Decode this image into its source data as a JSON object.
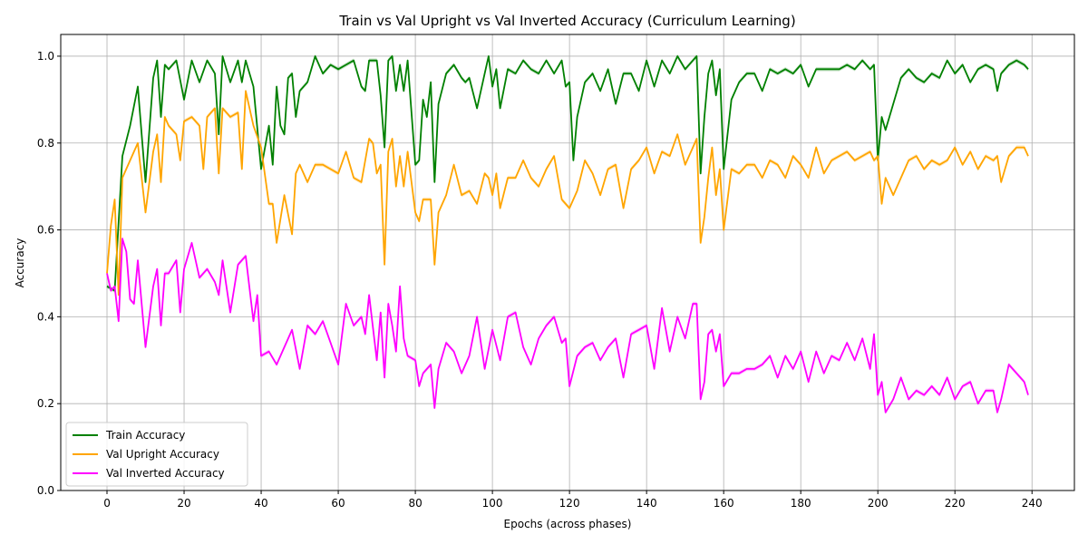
{
  "chart_data": {
    "type": "line",
    "title": "Train vs Val Upright vs Val Inverted Accuracy (Curriculum Learning)",
    "xlabel": "Epochs (across phases)",
    "ylabel": "Accuracy",
    "xlim": [
      -12,
      251
    ],
    "ylim": [
      0,
      1.05
    ],
    "xticks": [
      0,
      20,
      40,
      60,
      80,
      100,
      120,
      140,
      160,
      180,
      200,
      220,
      240
    ],
    "yticks": [
      0.0,
      0.2,
      0.4,
      0.6,
      0.8,
      1.0
    ],
    "ytick_labels": [
      "0.0",
      "0.2",
      "0.4",
      "0.6",
      "0.8",
      "1.0"
    ],
    "grid": true,
    "legend_position": "lower-left",
    "series": [
      {
        "name": "Train Accuracy",
        "color": "#008000",
        "x": [
          0,
          2,
          4,
          6,
          8,
          10,
          12,
          13,
          14,
          15,
          16,
          18,
          20,
          22,
          24,
          26,
          28,
          29,
          30,
          32,
          34,
          35,
          36,
          38,
          40,
          42,
          43,
          44,
          45,
          46,
          47,
          48,
          49,
          50,
          52,
          54,
          56,
          58,
          60,
          62,
          64,
          66,
          67,
          68,
          70,
          71,
          72,
          73,
          74,
          75,
          76,
          77,
          78,
          80,
          81,
          82,
          83,
          84,
          85,
          86,
          88,
          90,
          92,
          93,
          94,
          96,
          98,
          99,
          100,
          101,
          102,
          104,
          106,
          108,
          110,
          112,
          114,
          116,
          118,
          119,
          120,
          121,
          122,
          124,
          126,
          128,
          130,
          132,
          134,
          136,
          138,
          140,
          142,
          144,
          146,
          148,
          150,
          152,
          153,
          154,
          155,
          156,
          157,
          158,
          159,
          160,
          162,
          164,
          166,
          168,
          170,
          172,
          174,
          176,
          178,
          180,
          182,
          184,
          186,
          188,
          190,
          192,
          194,
          196,
          198,
          199,
          200,
          201,
          202,
          204,
          206,
          208,
          210,
          212,
          214,
          216,
          218,
          220,
          222,
          224,
          226,
          228,
          230,
          231,
          232,
          234,
          236,
          238,
          239
        ],
        "values": [
          0.47,
          0.46,
          0.77,
          0.84,
          0.93,
          0.71,
          0.95,
          0.99,
          0.86,
          0.98,
          0.97,
          0.99,
          0.9,
          0.99,
          0.94,
          0.99,
          0.96,
          0.82,
          1.0,
          0.94,
          0.99,
          0.94,
          0.99,
          0.93,
          0.74,
          0.84,
          0.75,
          0.93,
          0.84,
          0.82,
          0.95,
          0.96,
          0.86,
          0.92,
          0.94,
          1.0,
          0.96,
          0.98,
          0.97,
          0.98,
          0.99,
          0.93,
          0.92,
          0.99,
          0.99,
          0.91,
          0.79,
          0.99,
          1.0,
          0.92,
          0.98,
          0.92,
          0.99,
          0.75,
          0.76,
          0.9,
          0.86,
          0.94,
          0.71,
          0.89,
          0.96,
          0.98,
          0.95,
          0.94,
          0.95,
          0.88,
          0.96,
          1.0,
          0.93,
          0.97,
          0.88,
          0.97,
          0.96,
          0.99,
          0.97,
          0.96,
          0.99,
          0.96,
          0.99,
          0.93,
          0.94,
          0.76,
          0.86,
          0.94,
          0.96,
          0.92,
          0.97,
          0.89,
          0.96,
          0.96,
          0.92,
          0.99,
          0.93,
          0.99,
          0.96,
          1.0,
          0.97,
          0.99,
          1.0,
          0.73,
          0.86,
          0.96,
          0.99,
          0.91,
          0.97,
          0.74,
          0.9,
          0.94,
          0.96,
          0.96,
          0.92,
          0.97,
          0.96,
          0.97,
          0.96,
          0.98,
          0.93,
          0.97,
          0.97,
          0.97,
          0.97,
          0.98,
          0.97,
          0.99,
          0.97,
          0.98,
          0.76,
          0.86,
          0.83,
          0.89,
          0.95,
          0.97,
          0.95,
          0.94,
          0.96,
          0.95,
          0.99,
          0.96,
          0.98,
          0.94,
          0.97,
          0.98,
          0.97,
          0.92,
          0.96,
          0.98,
          0.99,
          0.98,
          0.97
        ]
      },
      {
        "name": "Val Upright Accuracy",
        "color": "#ffa500",
        "x": [
          0,
          1,
          2,
          3,
          4,
          6,
          8,
          10,
          12,
          13,
          14,
          15,
          16,
          18,
          19,
          20,
          22,
          24,
          25,
          26,
          28,
          29,
          30,
          32,
          34,
          35,
          36,
          38,
          40,
          42,
          43,
          44,
          46,
          48,
          49,
          50,
          52,
          54,
          56,
          58,
          60,
          62,
          64,
          66,
          68,
          69,
          70,
          71,
          72,
          73,
          74,
          75,
          76,
          77,
          78,
          80,
          81,
          82,
          84,
          85,
          86,
          88,
          90,
          92,
          94,
          96,
          98,
          99,
          100,
          101,
          102,
          104,
          106,
          108,
          110,
          112,
          114,
          116,
          118,
          120,
          122,
          124,
          126,
          128,
          130,
          132,
          134,
          136,
          138,
          140,
          142,
          144,
          146,
          148,
          150,
          152,
          153,
          154,
          155,
          156,
          157,
          158,
          159,
          160,
          162,
          164,
          166,
          168,
          170,
          172,
          174,
          176,
          178,
          180,
          182,
          184,
          186,
          188,
          190,
          192,
          194,
          196,
          198,
          199,
          200,
          201,
          202,
          204,
          206,
          208,
          210,
          212,
          214,
          216,
          218,
          220,
          222,
          224,
          226,
          228,
          230,
          231,
          232,
          234,
          236,
          238,
          239
        ],
        "values": [
          0.5,
          0.61,
          0.67,
          0.45,
          0.72,
          0.76,
          0.8,
          0.64,
          0.78,
          0.82,
          0.71,
          0.86,
          0.84,
          0.82,
          0.76,
          0.85,
          0.86,
          0.84,
          0.74,
          0.86,
          0.88,
          0.73,
          0.88,
          0.86,
          0.87,
          0.74,
          0.92,
          0.84,
          0.79,
          0.66,
          0.66,
          0.57,
          0.68,
          0.59,
          0.73,
          0.75,
          0.71,
          0.75,
          0.75,
          0.74,
          0.73,
          0.78,
          0.72,
          0.71,
          0.81,
          0.8,
          0.73,
          0.75,
          0.52,
          0.78,
          0.81,
          0.7,
          0.77,
          0.7,
          0.78,
          0.64,
          0.62,
          0.67,
          0.67,
          0.52,
          0.64,
          0.68,
          0.75,
          0.68,
          0.69,
          0.66,
          0.73,
          0.72,
          0.68,
          0.73,
          0.65,
          0.72,
          0.72,
          0.76,
          0.72,
          0.7,
          0.74,
          0.77,
          0.67,
          0.65,
          0.69,
          0.76,
          0.73,
          0.68,
          0.74,
          0.75,
          0.65,
          0.74,
          0.76,
          0.79,
          0.73,
          0.78,
          0.77,
          0.82,
          0.75,
          0.79,
          0.81,
          0.57,
          0.63,
          0.72,
          0.79,
          0.68,
          0.74,
          0.6,
          0.74,
          0.73,
          0.75,
          0.75,
          0.72,
          0.76,
          0.75,
          0.72,
          0.77,
          0.75,
          0.72,
          0.79,
          0.73,
          0.76,
          0.77,
          0.78,
          0.76,
          0.77,
          0.78,
          0.76,
          0.77,
          0.66,
          0.72,
          0.68,
          0.72,
          0.76,
          0.77,
          0.74,
          0.76,
          0.75,
          0.76,
          0.79,
          0.75,
          0.78,
          0.74,
          0.77,
          0.76,
          0.77,
          0.71,
          0.77,
          0.79,
          0.79,
          0.77
        ]
      },
      {
        "name": "Val Inverted Accuracy",
        "color": "#ff00ff",
        "x": [
          0,
          1,
          2,
          3,
          4,
          5,
          6,
          7,
          8,
          10,
          12,
          13,
          14,
          15,
          16,
          18,
          19,
          20,
          22,
          24,
          26,
          28,
          29,
          30,
          32,
          34,
          36,
          38,
          39,
          40,
          42,
          44,
          46,
          48,
          50,
          52,
          54,
          56,
          58,
          60,
          62,
          64,
          66,
          67,
          68,
          70,
          71,
          72,
          73,
          74,
          75,
          76,
          77,
          78,
          80,
          81,
          82,
          84,
          85,
          86,
          88,
          90,
          92,
          94,
          96,
          98,
          100,
          102,
          104,
          106,
          108,
          110,
          112,
          114,
          116,
          118,
          119,
          120,
          122,
          124,
          126,
          128,
          130,
          132,
          134,
          136,
          138,
          140,
          142,
          144,
          146,
          148,
          150,
          152,
          153,
          154,
          155,
          156,
          157,
          158,
          159,
          160,
          162,
          164,
          166,
          168,
          170,
          172,
          174,
          176,
          178,
          180,
          182,
          184,
          186,
          188,
          190,
          192,
          194,
          196,
          198,
          199,
          200,
          201,
          202,
          204,
          206,
          208,
          210,
          212,
          214,
          216,
          218,
          220,
          222,
          224,
          226,
          228,
          230,
          231,
          232,
          234,
          236,
          238,
          239
        ],
        "values": [
          0.5,
          0.46,
          0.47,
          0.39,
          0.58,
          0.55,
          0.44,
          0.43,
          0.53,
          0.33,
          0.47,
          0.51,
          0.38,
          0.5,
          0.5,
          0.53,
          0.41,
          0.51,
          0.57,
          0.49,
          0.51,
          0.48,
          0.45,
          0.53,
          0.41,
          0.52,
          0.54,
          0.39,
          0.45,
          0.31,
          0.32,
          0.29,
          0.33,
          0.37,
          0.28,
          0.38,
          0.36,
          0.39,
          0.34,
          0.29,
          0.43,
          0.38,
          0.4,
          0.36,
          0.45,
          0.3,
          0.41,
          0.26,
          0.43,
          0.38,
          0.32,
          0.47,
          0.35,
          0.31,
          0.3,
          0.24,
          0.27,
          0.29,
          0.19,
          0.28,
          0.34,
          0.32,
          0.27,
          0.31,
          0.4,
          0.28,
          0.37,
          0.3,
          0.4,
          0.41,
          0.33,
          0.29,
          0.35,
          0.38,
          0.4,
          0.34,
          0.35,
          0.24,
          0.31,
          0.33,
          0.34,
          0.3,
          0.33,
          0.35,
          0.26,
          0.36,
          0.37,
          0.38,
          0.28,
          0.42,
          0.32,
          0.4,
          0.35,
          0.43,
          0.43,
          0.21,
          0.25,
          0.36,
          0.37,
          0.32,
          0.36,
          0.24,
          0.27,
          0.27,
          0.28,
          0.28,
          0.29,
          0.31,
          0.26,
          0.31,
          0.28,
          0.32,
          0.25,
          0.32,
          0.27,
          0.31,
          0.3,
          0.34,
          0.3,
          0.35,
          0.28,
          0.36,
          0.22,
          0.25,
          0.18,
          0.21,
          0.26,
          0.21,
          0.23,
          0.22,
          0.24,
          0.22,
          0.26,
          0.21,
          0.24,
          0.25,
          0.2,
          0.23,
          0.23,
          0.18,
          0.21,
          0.29,
          0.27,
          0.25,
          0.22
        ]
      }
    ]
  }
}
